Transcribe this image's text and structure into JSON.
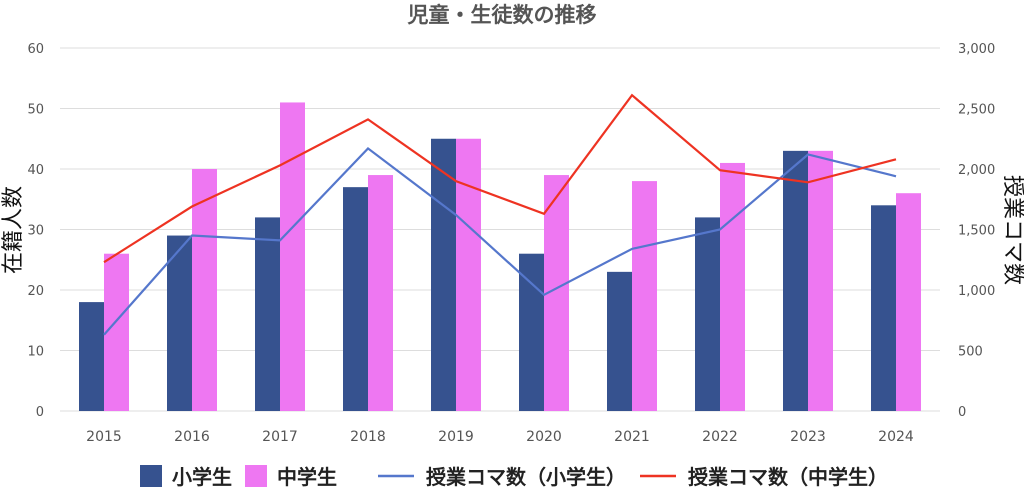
{
  "chart_data": {
    "type": "bar",
    "title": "児童・生徒数の推移",
    "categories": [
      "2015",
      "2016",
      "2017",
      "2018",
      "2019",
      "2020",
      "2021",
      "2022",
      "2023",
      "2024"
    ],
    "ylabel": "在籍人数",
    "y2label": "授業コマ数",
    "ylim": [
      0,
      60
    ],
    "y2lim": [
      0,
      3000
    ],
    "yticks": [
      "0",
      "10",
      "20",
      "30",
      "40",
      "50",
      "60"
    ],
    "y2ticks": [
      "0",
      "500",
      "1,000",
      "1,500",
      "2,000",
      "2,500",
      "3,000"
    ],
    "grid": true,
    "legend_position": "bottom",
    "series": [
      {
        "name": "小学生",
        "type": "bar",
        "axis": "left",
        "color": "#36528f",
        "values": [
          18,
          29,
          32,
          37,
          45,
          26,
          23,
          32,
          43,
          34
        ]
      },
      {
        "name": "中学生",
        "type": "bar",
        "axis": "left",
        "color": "#ee77f2",
        "values": [
          26,
          40,
          51,
          39,
          45,
          39,
          38,
          41,
          43,
          36
        ]
      },
      {
        "name": "授業コマ数（小学生）",
        "type": "line",
        "axis": "right",
        "color": "#5577cc",
        "values": [
          630,
          1450,
          1410,
          2170,
          1620,
          960,
          1340,
          1500,
          2120,
          1940
        ]
      },
      {
        "name": "授業コマ数（中学生）",
        "type": "line",
        "axis": "right",
        "color": "#ee3322",
        "values": [
          1230,
          1690,
          2030,
          2410,
          1900,
          1630,
          2610,
          1990,
          1890,
          2080
        ]
      }
    ]
  }
}
